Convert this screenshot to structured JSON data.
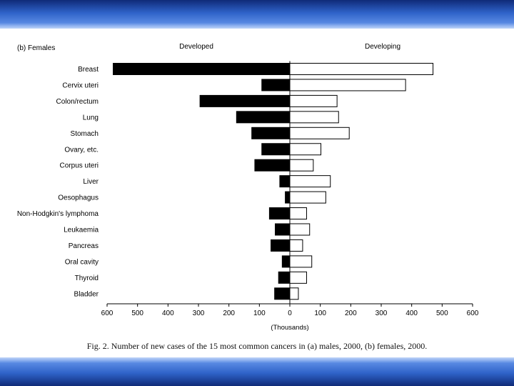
{
  "caption": "Fig. 2.  Number of new cases of the 15 most common cancers in (a) males, 2000, (b) females, 2000.",
  "chart_data": {
    "type": "bar",
    "orientation": "horizontal-diverging",
    "panel_label": "(b) Females",
    "left_header": "Developed",
    "right_header": "Developing",
    "xlabel": "(Thousands)",
    "xlim": [
      -600,
      600
    ],
    "xticks": [
      "600",
      "500",
      "400",
      "300",
      "200",
      "100",
      "0",
      "100",
      "200",
      "300",
      "400",
      "500",
      "600"
    ],
    "categories": [
      "Breast",
      "Cervix uteri",
      "Colon/rectum",
      "Lung",
      "Stomach",
      "Ovary, etc.",
      "Corpus uteri",
      "Liver",
      "Oesophagus",
      "Non-Hodgkin's lymphoma",
      "Leukaemia",
      "Pancreas",
      "Oral cavity",
      "Thyroid",
      "Bladder"
    ],
    "series": [
      {
        "name": "Developed",
        "direction": "left",
        "color": "#000000",
        "values": [
          580,
          92,
          295,
          175,
          125,
          92,
          115,
          33,
          15,
          67,
          48,
          62,
          25,
          37,
          50
        ]
      },
      {
        "name": "Developing",
        "direction": "right",
        "color": "#ffffff",
        "values": [
          470,
          380,
          155,
          160,
          195,
          102,
          77,
          133,
          118,
          55,
          65,
          42,
          72,
          55,
          28
        ]
      }
    ],
    "grid": false,
    "legend": "none"
  }
}
